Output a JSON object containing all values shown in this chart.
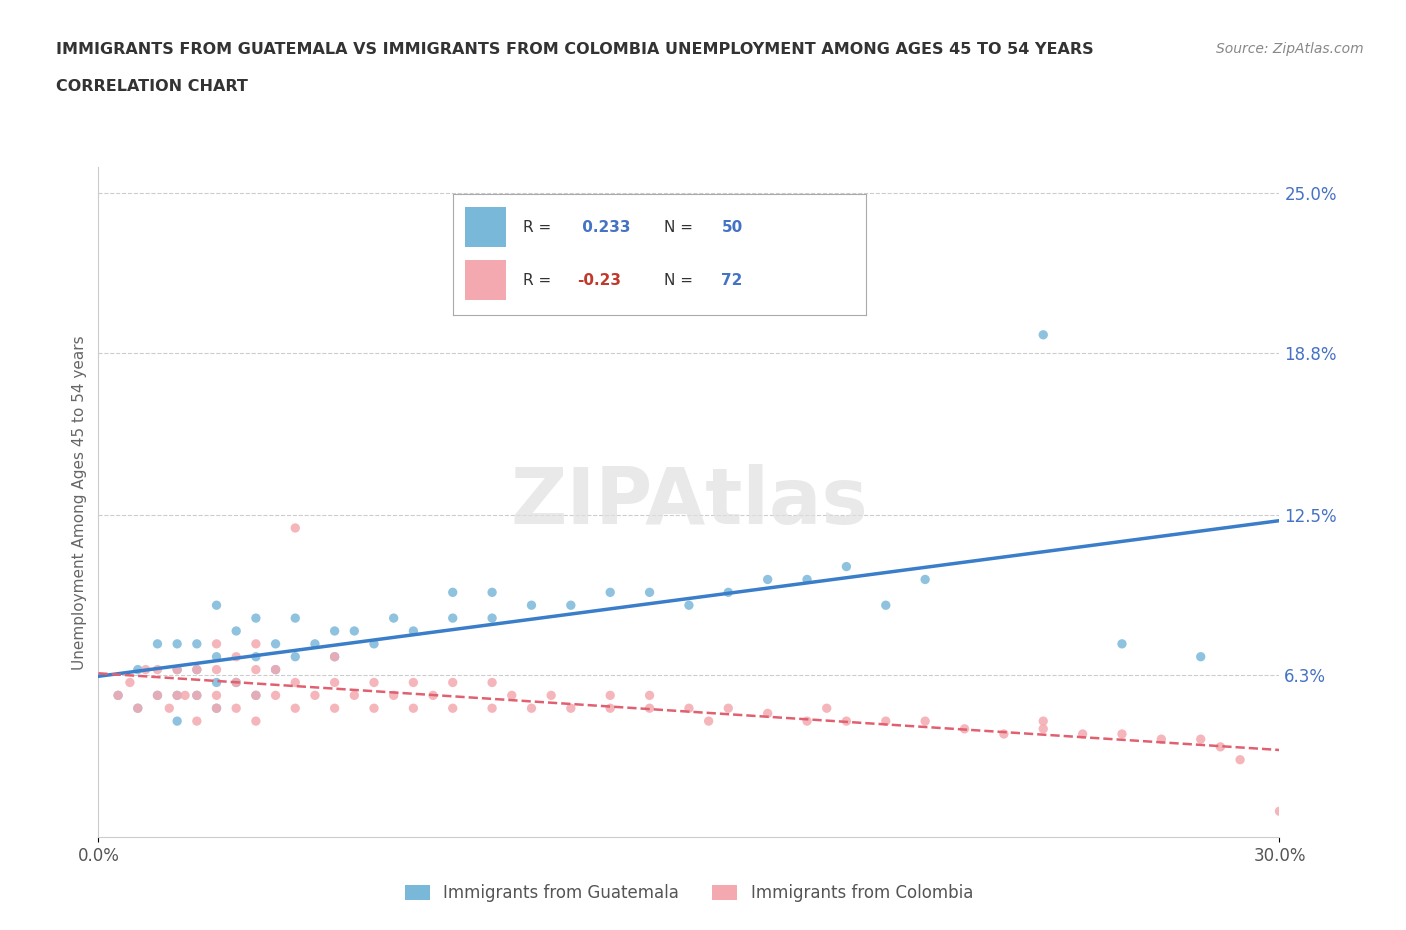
{
  "title_line1": "IMMIGRANTS FROM GUATEMALA VS IMMIGRANTS FROM COLOMBIA UNEMPLOYMENT AMONG AGES 45 TO 54 YEARS",
  "title_line2": "CORRELATION CHART",
  "source_text": "Source: ZipAtlas.com",
  "ylabel": "Unemployment Among Ages 45 to 54 years",
  "xlim": [
    0.0,
    0.3
  ],
  "ylim": [
    0.0,
    0.26
  ],
  "ytick_vals": [
    0.063,
    0.125,
    0.188,
    0.25
  ],
  "ytick_labels": [
    "6.3%",
    "12.5%",
    "18.8%",
    "25.0%"
  ],
  "xtick_vals": [
    0.0,
    0.3
  ],
  "xtick_labels": [
    "0.0%",
    "30.0%"
  ],
  "guatemala_R": 0.233,
  "guatemala_N": 50,
  "colombia_R": -0.23,
  "colombia_N": 72,
  "scatter_color_guatemala": "#7ab8d9",
  "scatter_color_colombia": "#f4a9b0",
  "line_color_guatemala": "#3a7dc9",
  "line_color_colombia": "#e06070",
  "watermark_color": "#e0e0e0",
  "background_color": "#ffffff",
  "grid_color": "#cccccc",
  "title_color": "#333333",
  "axis_label_color": "#666666",
  "tick_color": "#4472c4",
  "legend_blue_color": "#4472c4",
  "legend_red_color": "#c0392b",
  "guatemala_x": [
    0.005,
    0.01,
    0.01,
    0.015,
    0.015,
    0.02,
    0.02,
    0.02,
    0.02,
    0.025,
    0.025,
    0.025,
    0.03,
    0.03,
    0.03,
    0.03,
    0.035,
    0.035,
    0.04,
    0.04,
    0.04,
    0.045,
    0.045,
    0.05,
    0.05,
    0.055,
    0.06,
    0.06,
    0.065,
    0.07,
    0.075,
    0.08,
    0.09,
    0.09,
    0.1,
    0.1,
    0.11,
    0.12,
    0.13,
    0.14,
    0.15,
    0.16,
    0.17,
    0.18,
    0.19,
    0.2,
    0.21,
    0.24,
    0.26,
    0.28
  ],
  "guatemala_y": [
    0.055,
    0.05,
    0.065,
    0.055,
    0.075,
    0.045,
    0.055,
    0.065,
    0.075,
    0.055,
    0.065,
    0.075,
    0.05,
    0.06,
    0.07,
    0.09,
    0.06,
    0.08,
    0.055,
    0.07,
    0.085,
    0.065,
    0.075,
    0.07,
    0.085,
    0.075,
    0.07,
    0.08,
    0.08,
    0.075,
    0.085,
    0.08,
    0.085,
    0.095,
    0.085,
    0.095,
    0.09,
    0.09,
    0.095,
    0.095,
    0.09,
    0.095,
    0.1,
    0.1,
    0.105,
    0.09,
    0.1,
    0.195,
    0.075,
    0.07
  ],
  "colombia_x": [
    0.005,
    0.008,
    0.01,
    0.012,
    0.015,
    0.015,
    0.018,
    0.02,
    0.02,
    0.022,
    0.025,
    0.025,
    0.025,
    0.03,
    0.03,
    0.03,
    0.03,
    0.035,
    0.035,
    0.035,
    0.04,
    0.04,
    0.04,
    0.04,
    0.045,
    0.045,
    0.05,
    0.05,
    0.05,
    0.055,
    0.06,
    0.06,
    0.06,
    0.065,
    0.07,
    0.07,
    0.075,
    0.08,
    0.08,
    0.085,
    0.09,
    0.09,
    0.1,
    0.1,
    0.105,
    0.11,
    0.115,
    0.12,
    0.13,
    0.13,
    0.14,
    0.14,
    0.15,
    0.155,
    0.16,
    0.17,
    0.18,
    0.185,
    0.19,
    0.2,
    0.21,
    0.22,
    0.23,
    0.24,
    0.24,
    0.25,
    0.26,
    0.27,
    0.28,
    0.285,
    0.29,
    0.3
  ],
  "colombia_y": [
    0.055,
    0.06,
    0.05,
    0.065,
    0.055,
    0.065,
    0.05,
    0.055,
    0.065,
    0.055,
    0.045,
    0.055,
    0.065,
    0.05,
    0.055,
    0.065,
    0.075,
    0.05,
    0.06,
    0.07,
    0.045,
    0.055,
    0.065,
    0.075,
    0.055,
    0.065,
    0.05,
    0.06,
    0.12,
    0.055,
    0.05,
    0.06,
    0.07,
    0.055,
    0.05,
    0.06,
    0.055,
    0.05,
    0.06,
    0.055,
    0.05,
    0.06,
    0.05,
    0.06,
    0.055,
    0.05,
    0.055,
    0.05,
    0.05,
    0.055,
    0.05,
    0.055,
    0.05,
    0.045,
    0.05,
    0.048,
    0.045,
    0.05,
    0.045,
    0.045,
    0.045,
    0.042,
    0.04,
    0.042,
    0.045,
    0.04,
    0.04,
    0.038,
    0.038,
    0.035,
    0.03,
    0.01
  ]
}
